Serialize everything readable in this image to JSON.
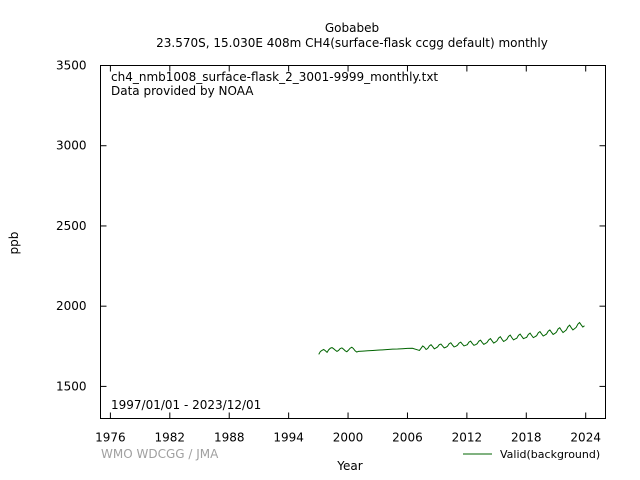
{
  "chart_data": {
    "type": "line",
    "title": "Gobabeb",
    "subtitle": "23.570S, 15.030E 408m    CH4(surface-flask ccgg default) monthly",
    "annotations": [
      "ch4_nmb1008_surface-flask_2_3001-9999_monthly.txt",
      "Data provided by NOAA"
    ],
    "date_range": "1997/01/01 - 2023/12/01",
    "credit": "WMO WDCGG / JMA",
    "xlabel": "Year",
    "ylabel": "ppb",
    "xlim": [
      1975,
      2026
    ],
    "ylim": [
      1300,
      3500
    ],
    "xticks": [
      1976,
      1982,
      1988,
      1994,
      2000,
      2006,
      2012,
      2018,
      2024
    ],
    "yticks": [
      1500,
      2000,
      2500,
      3000,
      3500
    ],
    "grid": false,
    "legend_position": "bottom-right",
    "series": [
      {
        "name": "Valid(background)",
        "color": "#006400",
        "x": [
          1997.04,
          1997.21,
          1997.38,
          1997.54,
          1997.71,
          1997.88,
          1998.04,
          1998.21,
          1998.38,
          1998.54,
          1998.71,
          1998.88,
          1999.04,
          1999.21,
          1999.38,
          1999.54,
          1999.71,
          1999.88,
          2000.04,
          2000.21,
          2000.38,
          2000.54,
          2000.71,
          2000.88,
          2001.04,
          2001.5,
          2002.0,
          2002.5,
          2003.0,
          2003.5,
          2004.0,
          2004.5,
          2005.0,
          2005.5,
          2006.0,
          2006.5,
          2007.0,
          2007.21,
          2007.38,
          2007.54,
          2007.71,
          2007.88,
          2008.04,
          2008.21,
          2008.38,
          2008.54,
          2008.71,
          2008.88,
          2009.04,
          2009.21,
          2009.38,
          2009.54,
          2009.71,
          2009.88,
          2010.04,
          2010.21,
          2010.38,
          2010.54,
          2010.71,
          2010.88,
          2011.04,
          2011.21,
          2011.38,
          2011.54,
          2011.71,
          2011.88,
          2012.04,
          2012.21,
          2012.38,
          2012.54,
          2012.71,
          2012.88,
          2013.04,
          2013.21,
          2013.38,
          2013.54,
          2013.71,
          2013.88,
          2014.04,
          2014.21,
          2014.38,
          2014.54,
          2014.71,
          2014.88,
          2015.04,
          2015.21,
          2015.38,
          2015.54,
          2015.71,
          2015.88,
          2016.04,
          2016.21,
          2016.38,
          2016.54,
          2016.71,
          2016.88,
          2017.04,
          2017.21,
          2017.38,
          2017.54,
          2017.71,
          2017.88,
          2018.04,
          2018.21,
          2018.38,
          2018.54,
          2018.71,
          2018.88,
          2019.04,
          2019.21,
          2019.38,
          2019.54,
          2019.71,
          2019.88,
          2020.04,
          2020.21,
          2020.38,
          2020.54,
          2020.71,
          2020.88,
          2021.04,
          2021.21,
          2021.38,
          2021.54,
          2021.71,
          2021.88,
          2022.04,
          2022.21,
          2022.38,
          2022.54,
          2022.71,
          2022.88,
          2023.04,
          2023.21,
          2023.38,
          2023.54,
          2023.71,
          2023.88
        ],
        "y": [
          1700,
          1718,
          1725,
          1730,
          1722,
          1712,
          1728,
          1738,
          1742,
          1735,
          1726,
          1718,
          1724,
          1736,
          1740,
          1732,
          1722,
          1716,
          1726,
          1738,
          1744,
          1736,
          1722,
          1714,
          1718,
          1720,
          1722,
          1724,
          1726,
          1728,
          1730,
          1732,
          1733,
          1735,
          1737,
          1738,
          1728,
          1724,
          1738,
          1752,
          1744,
          1730,
          1736,
          1752,
          1760,
          1748,
          1734,
          1740,
          1746,
          1760,
          1764,
          1752,
          1740,
          1744,
          1750,
          1766,
          1772,
          1758,
          1746,
          1750,
          1756,
          1770,
          1776,
          1764,
          1752,
          1756,
          1760,
          1776,
          1782,
          1768,
          1756,
          1760,
          1766,
          1782,
          1788,
          1774,
          1762,
          1768,
          1774,
          1790,
          1798,
          1784,
          1770,
          1776,
          1784,
          1802,
          1810,
          1794,
          1780,
          1786,
          1794,
          1812,
          1820,
          1804,
          1790,
          1796,
          1800,
          1818,
          1826,
          1812,
          1798,
          1802,
          1806,
          1824,
          1832,
          1818,
          1804,
          1810,
          1816,
          1834,
          1842,
          1828,
          1814,
          1820,
          1826,
          1844,
          1852,
          1838,
          1824,
          1830,
          1838,
          1858,
          1866,
          1850,
          1836,
          1844,
          1852,
          1872,
          1882,
          1866,
          1852,
          1860,
          1868,
          1888,
          1898,
          1884,
          1870,
          1878
        ]
      }
    ]
  }
}
